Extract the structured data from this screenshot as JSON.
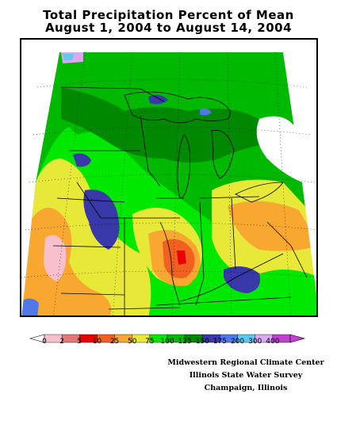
{
  "title": {
    "line1": "Total Precipitation Percent of Mean",
    "line2": "August 1, 2004 to August 14, 2004"
  },
  "legend": {
    "items": [
      {
        "label": "0",
        "color": "#f8c0cc"
      },
      {
        "label": "2",
        "color": "#e07878"
      },
      {
        "label": "5",
        "color": "#e80000"
      },
      {
        "label": "10",
        "color": "#f06020"
      },
      {
        "label": "25",
        "color": "#f8a830"
      },
      {
        "label": "50",
        "color": "#e8e838"
      },
      {
        "label": "75",
        "color": "#00e800"
      },
      {
        "label": "100",
        "color": "#00b800"
      },
      {
        "label": "125",
        "color": "#008800"
      },
      {
        "label": "150",
        "color": "#3838a8"
      },
      {
        "label": "175",
        "color": "#5078e8"
      },
      {
        "label": "200",
        "color": "#60c8f0"
      },
      {
        "label": "300",
        "color": "#d8a8f0"
      },
      {
        "label": "400",
        "color": "#c040d0"
      }
    ]
  },
  "credits": {
    "line1": "Midwestern Regional Climate Center",
    "line2": "Illinois State Water Survey",
    "line3": "Champaign, Illinois"
  }
}
